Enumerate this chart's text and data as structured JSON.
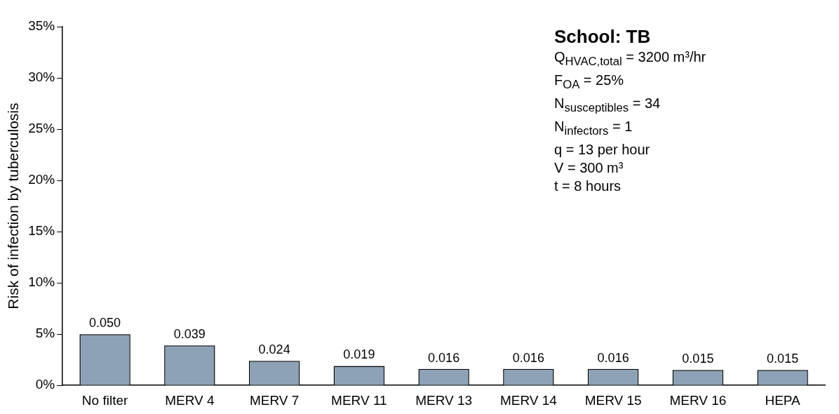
{
  "chart_data": {
    "type": "bar",
    "title": "School: TB",
    "ylabel": "Risk of infection by tuberculosis",
    "annotations": [
      "Q$_{HVAC,total}$ = 3200 m³/hr",
      "F$_{OA}$ = 25%",
      "N$_{susceptibles}$ = 34",
      "N$_{infectors}$ = 1",
      "q = 13 per hour",
      "V = 300 m³",
      "t = 8 hours"
    ],
    "categories": [
      "No filter",
      "MERV 4",
      "MERV 7",
      "MERV 11",
      "MERV 13",
      "MERV 14",
      "MERV 15",
      "MERV 16",
      "HEPA"
    ],
    "values": [
      0.05,
      0.039,
      0.024,
      0.019,
      0.016,
      0.016,
      0.016,
      0.015,
      0.015
    ],
    "value_labels": [
      "0.050",
      "0.039",
      "0.024",
      "0.019",
      "0.016",
      "0.016",
      "0.016",
      "0.015",
      "0.015"
    ],
    "color": "#8da2b7",
    "ylim": [
      0,
      0.35
    ],
    "yticks": [
      {
        "value": 0,
        "label": "0%"
      },
      {
        "value": 0.05,
        "label": "5%"
      },
      {
        "value": 0.1,
        "label": "10%"
      },
      {
        "value": 0.15,
        "label": "15%"
      },
      {
        "value": 0.2,
        "label": "20%"
      },
      {
        "value": 0.25,
        "label": "25%"
      },
      {
        "value": 0.3,
        "label": "30%"
      },
      {
        "value": 0.35,
        "label": "35%"
      }
    ],
    "legend": false
  }
}
